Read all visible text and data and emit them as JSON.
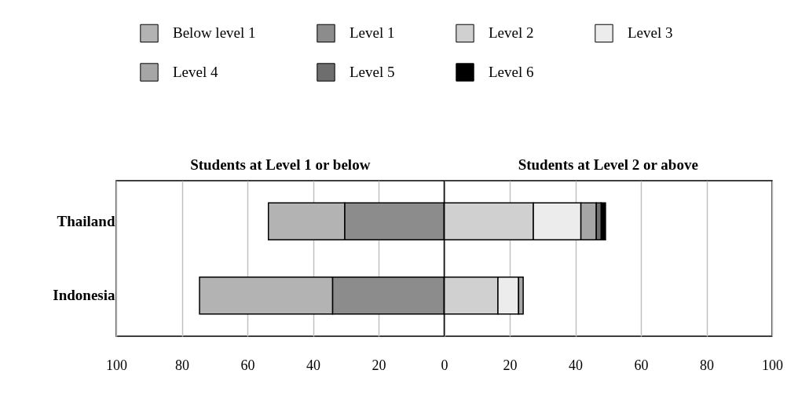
{
  "chart_data": {
    "type": "bar",
    "orientation": "horizontal",
    "stacked": true,
    "categories": [
      "Thailand",
      "Indonesia"
    ],
    "series": [
      {
        "name": "Below level 1",
        "color": "#b3b3b3",
        "values": [
          -23.3,
          -40.6
        ]
      },
      {
        "name": "Level 1",
        "color": "#8c8c8c",
        "values": [
          -30.3,
          -34.0
        ]
      },
      {
        "name": "Level 2",
        "color": "#d0d0d0",
        "values": [
          27.2,
          16.4
        ]
      },
      {
        "name": "Level 3",
        "color": "#ececec",
        "values": [
          14.5,
          6.3
        ]
      },
      {
        "name": "Level 4",
        "color": "#a6a6a6",
        "values": [
          4.7,
          1.4
        ]
      },
      {
        "name": "Level 5",
        "color": "#6e6e6e",
        "values": [
          1.5,
          null
        ]
      },
      {
        "name": "Level 6",
        "color": "#000000",
        "values": [
          1.3,
          null
        ]
      }
    ],
    "xlim": [
      -100,
      100
    ],
    "xticks": [
      {
        "value": -100,
        "label": "100"
      },
      {
        "value": -80,
        "label": "80"
      },
      {
        "value": -60,
        "label": "60"
      },
      {
        "value": -40,
        "label": "40"
      },
      {
        "value": -20,
        "label": "20"
      },
      0,
      20,
      40,
      60,
      80,
      100
    ],
    "grid": "x",
    "legend": "top",
    "ref_lines": [
      {
        "axis": "x",
        "value": 0,
        "color": "#000000"
      }
    ],
    "annotations": [
      "Students at Level 1 or below",
      "Students at Level 2 or above"
    ]
  }
}
